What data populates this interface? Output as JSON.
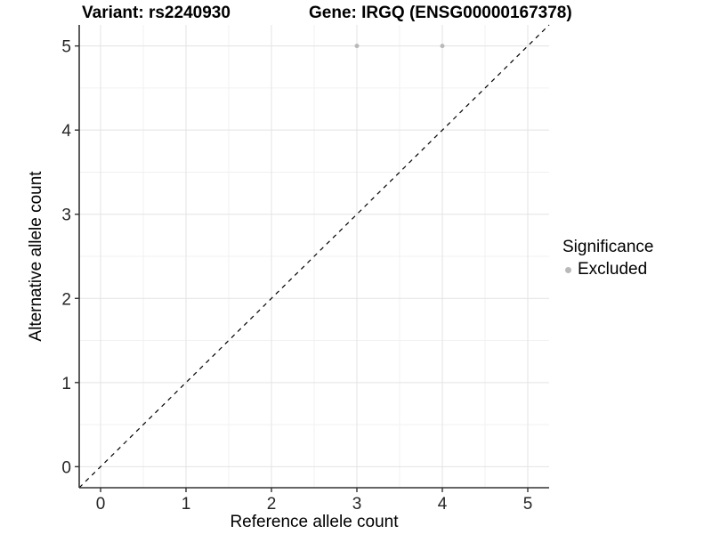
{
  "header": {
    "variant_title": "Variant: rs2240930",
    "gene_title": "Gene: IRGQ (ENSG00000167378)"
  },
  "legend": {
    "title": "Significance",
    "items": [
      {
        "label": "Excluded",
        "color": "#b9b9b9",
        "marker": "dot-icon"
      }
    ],
    "position": "right"
  },
  "chart_data": {
    "type": "scatter",
    "title": "",
    "xlabel": "Reference allele count",
    "ylabel": "Alternative allele count",
    "x_ticks": [
      0,
      1,
      2,
      3,
      4,
      5
    ],
    "y_ticks": [
      0,
      1,
      2,
      3,
      4,
      5
    ],
    "xlim": [
      -0.25,
      5.25
    ],
    "ylim": [
      -0.25,
      5.25
    ],
    "grid": true,
    "minor_grid": true,
    "legend_position": "right",
    "series": [
      {
        "name": "Excluded",
        "color": "#b9b9b9",
        "points": [
          {
            "x": 3,
            "y": 5
          },
          {
            "x": 4,
            "y": 5
          }
        ]
      }
    ],
    "reference_line": {
      "kind": "identity",
      "slope": 1,
      "intercept": 0,
      "style": "dashed",
      "color": "#000000"
    },
    "colors": {
      "grid_major": "#e3e3e3",
      "grid_minor": "#f1f1f1",
      "axis_line": "#333333",
      "tick_label": "#262626",
      "panel_background": "#ffffff"
    }
  }
}
